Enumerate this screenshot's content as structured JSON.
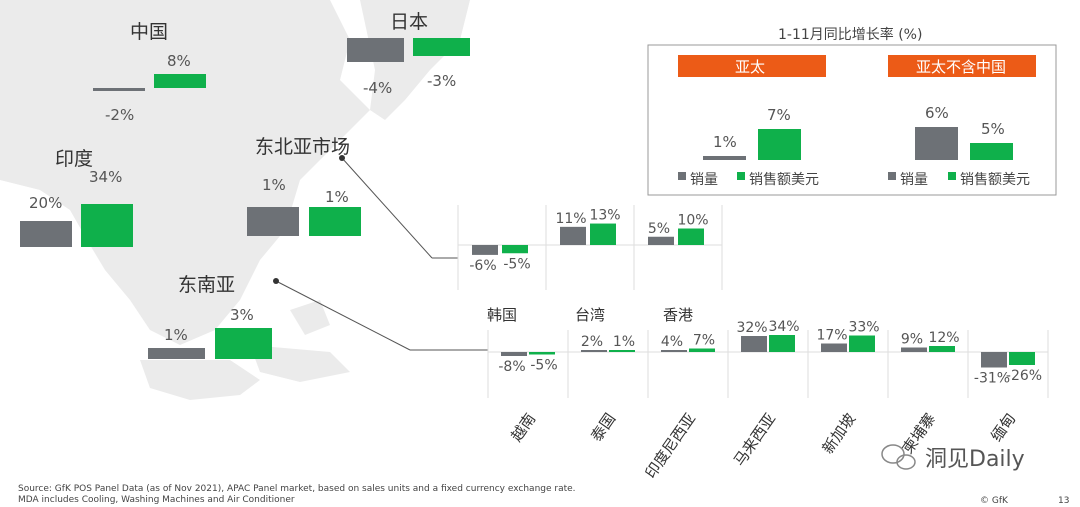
{
  "colors": {
    "volume": "#6d7176",
    "value": "#0fb04b",
    "header": "#ec5b17",
    "map": "#ebebeb"
  },
  "legend_box": {
    "title": "1-11月同比增长率 (%)",
    "panels": [
      {
        "header": "亚太",
        "volume_label": "1%",
        "value_label": "7%",
        "volume": 1,
        "value": 7
      },
      {
        "header": "亚太不含中国",
        "volume_label": "6%",
        "value_label": "5%",
        "volume": 6,
        "value": 5
      }
    ],
    "legend_volume": "销量",
    "legend_value": "销售额美元"
  },
  "regions": {
    "china": {
      "name": "中国",
      "volume_label": "-2%",
      "value_label": "8%"
    },
    "japan": {
      "name": "日本",
      "volume_label": "-4%",
      "value_label": "-3%"
    },
    "india": {
      "name": "印度",
      "volume_label": "20%",
      "value_label": "34%"
    },
    "northeast_asia": {
      "name": "东北亚市场",
      "volume_label": "1%",
      "value_label": "1%"
    },
    "southeast_asia": {
      "name": "东南亚",
      "volume_label": "1%",
      "value_label": "3%"
    }
  },
  "chart_data": [
    {
      "type": "bar",
      "title": "中国",
      "categories": [
        "中国"
      ],
      "series": [
        {
          "name": "销量",
          "values": [
            -2
          ]
        },
        {
          "name": "销售额美元",
          "values": [
            8
          ]
        }
      ]
    },
    {
      "type": "bar",
      "title": "日本",
      "categories": [
        "日本"
      ],
      "series": [
        {
          "name": "销量",
          "values": [
            -4
          ]
        },
        {
          "name": "销售额美元",
          "values": [
            -3
          ]
        }
      ]
    },
    {
      "type": "bar",
      "title": "印度",
      "categories": [
        "印度"
      ],
      "series": [
        {
          "name": "销量",
          "values": [
            20
          ]
        },
        {
          "name": "销售额美元",
          "values": [
            34
          ]
        }
      ]
    },
    {
      "type": "bar",
      "title": "东北亚市场",
      "categories": [
        "东北亚市场"
      ],
      "series": [
        {
          "name": "销量",
          "values": [
            1
          ]
        },
        {
          "name": "销售额美元",
          "values": [
            1
          ]
        }
      ]
    },
    {
      "type": "bar",
      "title": "东南亚",
      "categories": [
        "东南亚"
      ],
      "series": [
        {
          "name": "销量",
          "values": [
            1
          ]
        },
        {
          "name": "销售额美元",
          "values": [
            3
          ]
        }
      ]
    },
    {
      "type": "bar",
      "title": "",
      "categories": [
        "韩国",
        "台湾",
        "香港"
      ],
      "value_labels": [
        [
          "-6%",
          "-5%"
        ],
        [
          "11%",
          "13%"
        ],
        [
          "5%",
          "10%"
        ]
      ],
      "series": [
        {
          "name": "销量",
          "values": [
            -6,
            11,
            5
          ]
        },
        {
          "name": "销售额美元",
          "values": [
            -5,
            13,
            10
          ]
        }
      ]
    },
    {
      "type": "bar",
      "title": "",
      "categories": [
        "越南",
        "泰国",
        "印度尼西亚",
        "马来西亚",
        "新加坡",
        "柬埔寨",
        "缅甸"
      ],
      "value_labels": [
        [
          "-8%",
          "-5%"
        ],
        [
          "2%",
          "1%"
        ],
        [
          "4%",
          "7%"
        ],
        [
          "32%",
          "34%"
        ],
        [
          "17%",
          "33%"
        ],
        [
          "9%",
          "12%"
        ],
        [
          "-31%",
          "-26%"
        ]
      ],
      "series": [
        {
          "name": "销量",
          "values": [
            -8,
            2,
            4,
            32,
            17,
            9,
            -31
          ]
        },
        {
          "name": "销售额美元",
          "values": [
            -5,
            1,
            7,
            34,
            33,
            12,
            -26
          ]
        }
      ]
    }
  ],
  "footer": {
    "source": "Source: GfK POS Panel Data (as of Nov 2021), APAC Panel market, based on sales units and a fixed currency exchange rate.",
    "note": "MDA includes Cooling, Washing Machines and Air Conditioner",
    "copyright": "© GfK",
    "page": "13",
    "watermark": "洞见Daily"
  }
}
